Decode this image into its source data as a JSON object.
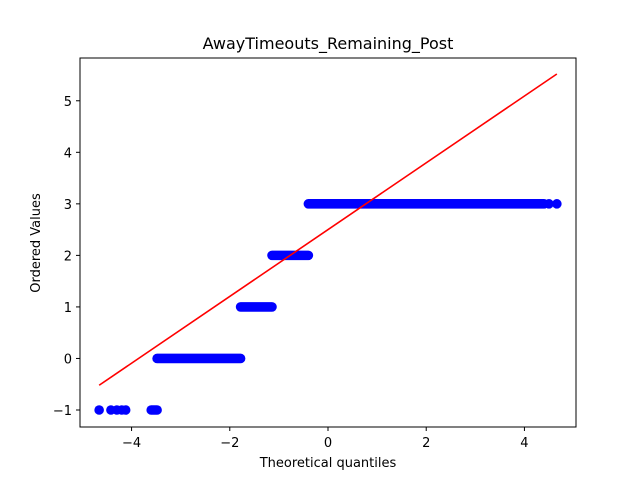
{
  "chart_data": {
    "type": "scatter",
    "title": "AwayTimeouts_Remaining_Post",
    "xlabel": "Theoretical quantiles",
    "ylabel": "Ordered Values",
    "xlim": [
      -5.05,
      5.05
    ],
    "ylim": [
      -1.33,
      5.83
    ],
    "xticks": [
      -4,
      -2,
      0,
      2,
      4
    ],
    "xtick_labels": [
      "−4",
      "−2",
      "0",
      "2",
      "4"
    ],
    "yticks": [
      -1,
      0,
      1,
      2,
      3,
      4,
      5
    ],
    "ytick_labels": [
      "−1",
      "0",
      "1",
      "2",
      "3",
      "4",
      "5"
    ],
    "grid": false,
    "series": [
      {
        "kind": "points",
        "color": "#0000ff",
        "segments": [
          {
            "y": -1,
            "x_from": -3.6,
            "x_to": -3.48,
            "x_isolated": [
              -4.66,
              -4.42,
              -4.3,
              -4.2,
              -4.12
            ]
          },
          {
            "y": 0,
            "x_from": -3.48,
            "x_to": -1.78
          },
          {
            "y": 1,
            "x_from": -1.78,
            "x_to": -1.14
          },
          {
            "y": 2,
            "x_from": -1.14,
            "x_to": -0.4
          },
          {
            "y": 3,
            "x_from": -0.4,
            "x_to": 4.4,
            "x_isolated": [
              4.5,
              4.66
            ]
          }
        ]
      },
      {
        "kind": "fit-line",
        "color": "#ff0000",
        "x": [
          -4.66,
          4.66
        ],
        "y": [
          -0.52,
          5.52
        ]
      }
    ]
  }
}
